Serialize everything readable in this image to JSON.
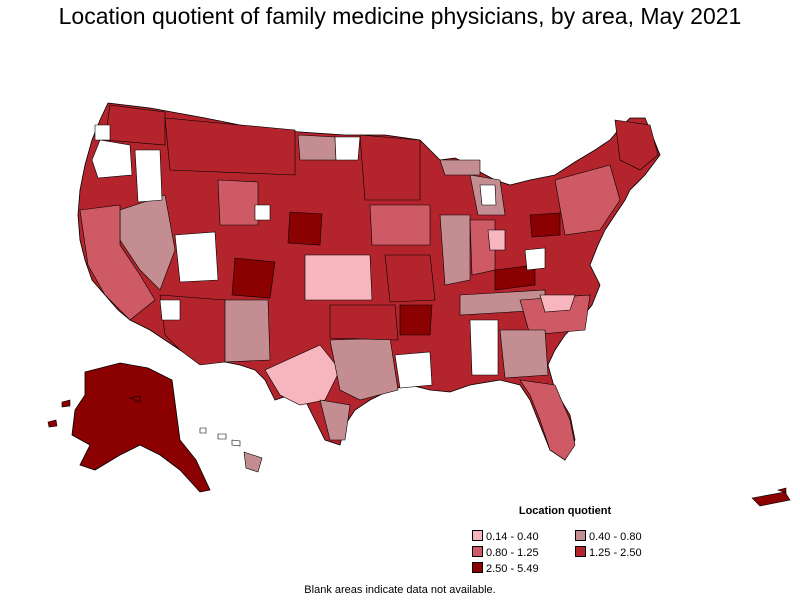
{
  "title": "Location quotient of family medicine physicians, by area, May 2021",
  "legend": {
    "title": "Location quotient",
    "items": [
      {
        "label": "0.14 - 0.40",
        "color": "#f7b5bd"
      },
      {
        "label": "0.40 - 0.80",
        "color": "#c38d92"
      },
      {
        "label": "0.80 - 1.25",
        "color": "#cd5a64"
      },
      {
        "label": "1.25 - 2.50",
        "color": "#b3242c"
      },
      {
        "label": "2.50 - 5.49",
        "color": "#8b0000"
      }
    ]
  },
  "footnote": "Blank areas indicate data not available.",
  "colors": {
    "blank": "#ffffff",
    "border": "#000000"
  }
}
